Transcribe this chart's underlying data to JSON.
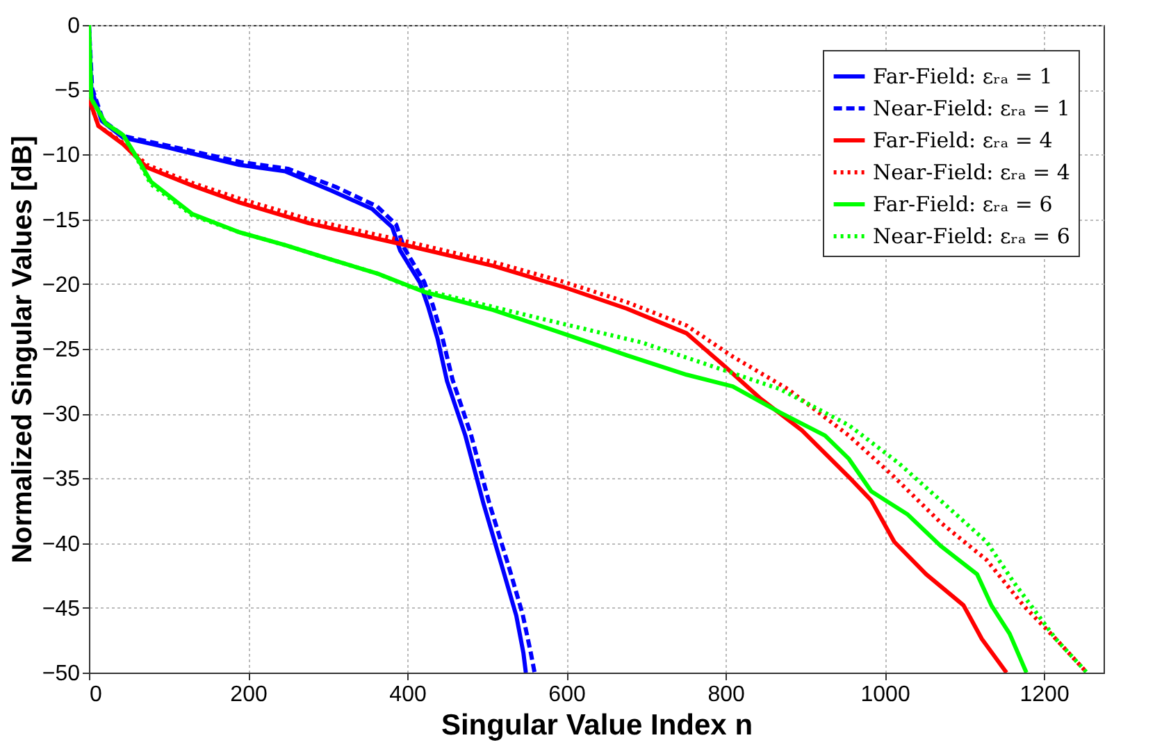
{
  "chart_data": {
    "type": "line",
    "xlabel": "Singular Value Index n",
    "ylabel": "Normalized Singular Values [dB]",
    "xlim": [
      0,
      1275
    ],
    "ylim": [
      -50,
      0
    ],
    "xticks": [
      0,
      200,
      400,
      600,
      800,
      1000,
      1200
    ],
    "yticks": [
      -50,
      -45,
      -40,
      -35,
      -30,
      -25,
      -20,
      -15,
      -10,
      -5,
      0
    ],
    "grid": true,
    "legend": "top right",
    "marker": "none",
    "series": [
      {
        "name": "Far-Field: εᵣₐ = 1",
        "color": "#0000ff",
        "line_style": "solid",
        "x": [
          0,
          3,
          16,
          43,
          102,
          189,
          247,
          305,
          356,
          381,
          391,
          416,
          426,
          438,
          450,
          473,
          496,
          520,
          537,
          546,
          549
        ],
        "values": [
          0,
          -4.9,
          -7.4,
          -8.7,
          -9.5,
          -10.8,
          -11.3,
          -12.8,
          -14.2,
          -15.6,
          -17.4,
          -19.9,
          -21.7,
          -24.2,
          -27.5,
          -31.7,
          -37,
          -42,
          -45.6,
          -48.5,
          -50
        ]
      },
      {
        "name": "Near-Field: εᵣₐ = 1",
        "color": "#0000ff",
        "line_style": "dashed",
        "x": [
          0,
          4,
          18,
          45,
          105,
          192,
          250,
          310,
          362,
          386,
          396,
          421,
          432,
          444,
          457,
          480,
          503,
          528,
          545,
          555,
          560
        ],
        "values": [
          0,
          -4.9,
          -7.4,
          -8.6,
          -9.4,
          -10.6,
          -11.1,
          -12.5,
          -14,
          -15.4,
          -17.2,
          -19.8,
          -21.6,
          -24.1,
          -27.4,
          -31.6,
          -36.9,
          -41.9,
          -45.5,
          -48.4,
          -50
        ]
      },
      {
        "name": "Far-Field: εᵣₐ = 4",
        "color": "#ff0000",
        "line_style": "solid",
        "x": [
          0,
          12,
          43,
          73,
          130,
          189,
          276,
          391,
          508,
          595,
          676,
          751,
          798,
          843,
          896,
          955,
          983,
          1012,
          1052,
          1099,
          1122,
          1153
        ],
        "values": [
          -5.7,
          -7.8,
          -9.2,
          -11,
          -12.4,
          -13.7,
          -15.3,
          -16.9,
          -18.6,
          -20.2,
          -21.9,
          -23.8,
          -26.3,
          -28.8,
          -31.3,
          -34.9,
          -36.7,
          -39.9,
          -42.4,
          -44.8,
          -47.4,
          -50
        ]
      },
      {
        "name": "Near-Field: εᵣₐ = 4",
        "color": "#ff0000",
        "line_style": "dotted",
        "x": [
          0,
          12,
          43,
          73,
          130,
          189,
          276,
          391,
          508,
          595,
          676,
          751,
          809,
          878,
          955,
          1012,
          1070,
          1128,
          1174,
          1215,
          1254
        ],
        "values": [
          -5.7,
          -7.8,
          -9.1,
          -10.8,
          -12.2,
          -13.4,
          -15,
          -16.6,
          -18.3,
          -19.8,
          -21.4,
          -23.2,
          -25.6,
          -28.1,
          -31.7,
          -34.9,
          -38.4,
          -41.3,
          -44.8,
          -47.4,
          -50
        ]
      },
      {
        "name": "Far-Field: εᵣₐ = 6",
        "color": "#00ff00",
        "line_style": "solid",
        "x": [
          0,
          3,
          21,
          43,
          61,
          78,
          130,
          189,
          247,
          304,
          363,
          421,
          508,
          595,
          676,
          751,
          809,
          868,
          925,
          955,
          983,
          1029,
          1070,
          1116,
          1134,
          1157,
          1178
        ],
        "values": [
          0,
          -5.7,
          -7.6,
          -8.5,
          -10.3,
          -12.1,
          -14.6,
          -16,
          -17,
          -18.1,
          -19.2,
          -20.6,
          -22,
          -23.8,
          -25.5,
          -27,
          -27.9,
          -29.9,
          -31.7,
          -33.5,
          -36,
          -37.8,
          -40.2,
          -42.4,
          -44.8,
          -47,
          -50
        ]
      },
      {
        "name": "Near-Field: εᵣₐ = 6",
        "color": "#00ff00",
        "line_style": "dotted",
        "x": [
          0,
          3,
          21,
          43,
          61,
          78,
          130,
          189,
          247,
          304,
          363,
          403,
          577,
          694,
          781,
          868,
          955,
          1017,
          1070,
          1128,
          1163,
          1215,
          1254
        ],
        "values": [
          0,
          -5.7,
          -7.6,
          -8.5,
          -10.4,
          -12.3,
          -14.7,
          -16,
          -17,
          -18.1,
          -19.2,
          -20.2,
          -22.8,
          -24.5,
          -26.3,
          -28.1,
          -30.9,
          -33.8,
          -36.7,
          -39.9,
          -43.1,
          -47.4,
          -50
        ]
      }
    ]
  }
}
